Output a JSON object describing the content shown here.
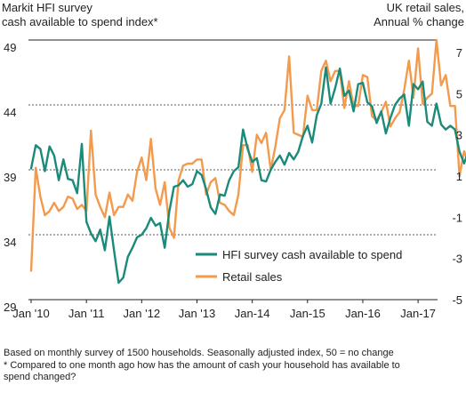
{
  "chart_data": {
    "type": "line",
    "left_axis_title": [
      "Markit HFI survey",
      "cash available to spend index*"
    ],
    "right_axis_title": [
      "UK retail sales,",
      "Annual % change"
    ],
    "x_tick_labels": [
      "Jan '10",
      "Jan '11",
      "Jan '12",
      "Jan '13",
      "Jan-14",
      "Jan-15",
      "Jan-16",
      "Jan-17"
    ],
    "left_axis": {
      "ticks": [
        29,
        34,
        39,
        44,
        49
      ],
      "range": [
        29,
        49
      ]
    },
    "right_axis": {
      "ticks": [
        -5,
        -3,
        -1,
        1,
        3,
        5,
        7
      ],
      "range": [
        -5,
        7.6
      ]
    },
    "x_range_months": [
      "2010-01",
      "2017-03"
    ],
    "series": [
      {
        "name": "HFI survey cash available to spend",
        "axis": "left",
        "color": "#1a8a7a",
        "values": [
          39.1,
          40.9,
          40.6,
          38.9,
          40.8,
          40.1,
          38.2,
          39.8,
          38.3,
          38.2,
          37.2,
          41.0,
          35.0,
          34.1,
          33.5,
          34.4,
          32.8,
          35.4,
          32.8,
          30.3,
          30.7,
          32.3,
          33.0,
          33.8,
          34.0,
          34.5,
          35.3,
          34.7,
          34.9,
          33.0,
          35.8,
          37.7,
          37.8,
          38.2,
          37.7,
          37.9,
          38.9,
          38.6,
          37.5,
          36.1,
          35.6,
          37.1,
          37.0,
          38.2,
          38.9,
          39.2,
          42.1,
          40.6,
          39.6,
          39.9,
          38.2,
          38.1,
          39.0,
          39.6,
          40.1,
          39.4,
          40.3,
          39.8,
          40.4,
          41.6,
          42.4,
          41.1,
          43.2,
          44.1,
          46.9,
          44.1,
          45.3,
          46.8,
          44.7,
          45.1,
          43.5,
          45.6,
          45.7,
          44.2,
          43.9,
          42.6,
          43.5,
          41.8,
          43.0,
          44.0,
          44.5,
          44.8,
          42.4,
          45.6,
          45.2,
          45.8,
          42.7,
          42.4,
          44.1,
          42.5,
          42.1,
          42.4,
          42.1,
          40.4,
          39.5,
          40.5
        ]
      },
      {
        "name": "Retail sales",
        "axis": "right",
        "color": "#f39a4c",
        "values": [
          -3.6,
          1.4,
          0.0,
          -0.9,
          -0.7,
          -0.3,
          -0.7,
          -0.5,
          0.0,
          -0.1,
          -0.6,
          -0.4,
          -0.7,
          3.2,
          0.1,
          -0.5,
          -1.0,
          0.2,
          -0.9,
          -0.5,
          -0.5,
          0.1,
          -0.2,
          1.2,
          1.9,
          0.8,
          2.8,
          0.4,
          -0.4,
          0.7,
          -1.5,
          -2.0,
          0.8,
          1.5,
          1.6,
          1.6,
          1.8,
          1.8,
          0.1,
          0.7,
          0.9,
          -0.3,
          -0.4,
          -0.7,
          -0.9,
          0.1,
          2.5,
          2.5,
          1.2,
          3.0,
          2.6,
          3.1,
          1.3,
          2.4,
          3.8,
          4.2,
          6.8,
          3.1,
          3.0,
          2.9,
          4.9,
          4.2,
          4.2,
          6.1,
          6.6,
          5.6,
          6.1,
          6.1,
          4.3,
          5.6,
          4.4,
          4.4,
          5.9,
          5.8,
          3.9,
          3.7,
          4.1,
          4.6,
          3.4,
          3.8,
          4.1,
          5.2,
          6.6,
          4.8,
          7.2,
          4.5,
          4.8,
          5.0,
          7.6,
          5.4,
          5.9,
          4.4,
          4.4,
          1.0,
          2.2,
          1.6
        ]
      }
    ],
    "legend": {
      "position": "bottom-right",
      "entries": [
        "HFI survey cash available to spend",
        "Retail sales"
      ]
    },
    "reference_lines": "dashed horizontal lines at left-axis ticks 34, 39, 44"
  },
  "footnotes": [
    "Based on monthly survey of 1500 households. Seasonally adjusted index, 50 = no change",
    "* Compared to one month ago how has the amount of cash your household has available to",
    "spend changed?"
  ]
}
